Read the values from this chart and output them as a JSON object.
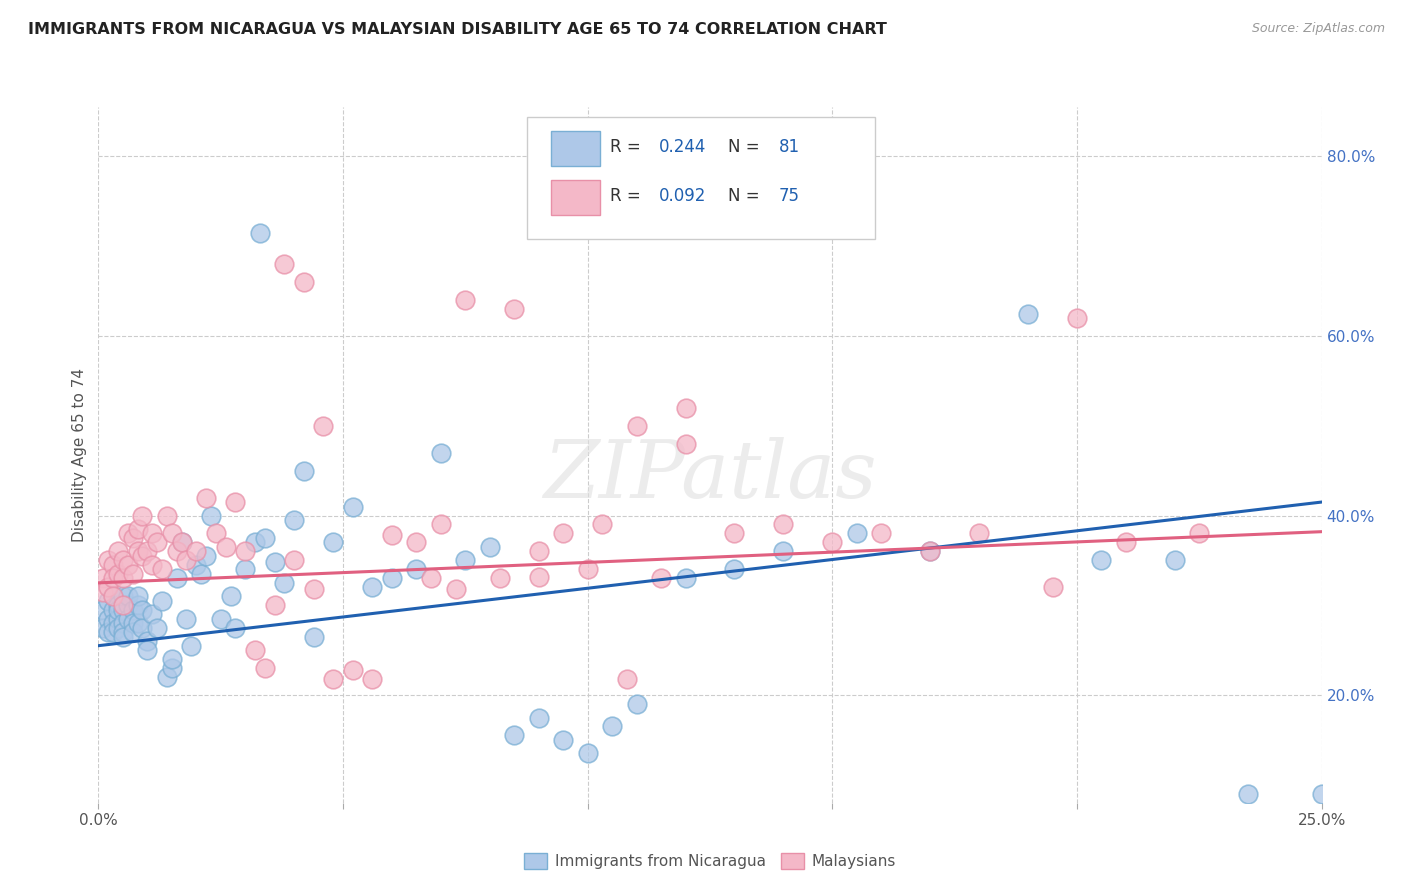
{
  "title": "IMMIGRANTS FROM NICARAGUA VS MALAYSIAN DISABILITY AGE 65 TO 74 CORRELATION CHART",
  "source": "Source: ZipAtlas.com",
  "ylabel": "Disability Age 65 to 74",
  "y_ticks": [
    0.2,
    0.4,
    0.6,
    0.8
  ],
  "y_tick_labels": [
    "20.0%",
    "40.0%",
    "60.0%",
    "80.0%"
  ],
  "xlim": [
    0.0,
    0.25
  ],
  "ylim": [
    0.08,
    0.855
  ],
  "legend_r1": "0.244",
  "legend_n1": "81",
  "legend_r2": "0.092",
  "legend_n2": "75",
  "color_blue": "#aec8e8",
  "color_pink": "#f4b8c8",
  "edge_blue": "#7aafd4",
  "edge_pink": "#e890a8",
  "line_blue": "#2060b0",
  "line_pink": "#e06080",
  "trendline1_x": [
    0.0,
    0.25
  ],
  "trendline1_y": [
    0.255,
    0.415
  ],
  "trendline2_x": [
    0.0,
    0.25
  ],
  "trendline2_y": [
    0.325,
    0.382
  ],
  "scatter_blue_x": [
    0.001,
    0.001,
    0.002,
    0.002,
    0.002,
    0.003,
    0.003,
    0.003,
    0.003,
    0.004,
    0.004,
    0.004,
    0.004,
    0.005,
    0.005,
    0.005,
    0.005,
    0.005,
    0.006,
    0.006,
    0.006,
    0.007,
    0.007,
    0.007,
    0.008,
    0.008,
    0.008,
    0.009,
    0.009,
    0.01,
    0.01,
    0.011,
    0.012,
    0.013,
    0.014,
    0.015,
    0.015,
    0.016,
    0.017,
    0.018,
    0.019,
    0.02,
    0.021,
    0.022,
    0.023,
    0.025,
    0.027,
    0.028,
    0.03,
    0.032,
    0.034,
    0.036,
    0.038,
    0.04,
    0.042,
    0.044,
    0.048,
    0.052,
    0.056,
    0.06,
    0.065,
    0.07,
    0.075,
    0.08,
    0.085,
    0.09,
    0.095,
    0.1,
    0.105,
    0.11,
    0.12,
    0.13,
    0.14,
    0.155,
    0.17,
    0.19,
    0.205,
    0.22,
    0.235,
    0.25,
    0.033
  ],
  "scatter_blue_y": [
    0.295,
    0.275,
    0.305,
    0.285,
    0.27,
    0.31,
    0.295,
    0.28,
    0.27,
    0.3,
    0.285,
    0.295,
    0.275,
    0.295,
    0.31,
    0.28,
    0.27,
    0.265,
    0.3,
    0.31,
    0.285,
    0.295,
    0.28,
    0.27,
    0.3,
    0.31,
    0.28,
    0.295,
    0.275,
    0.26,
    0.25,
    0.29,
    0.275,
    0.305,
    0.22,
    0.23,
    0.24,
    0.33,
    0.37,
    0.285,
    0.255,
    0.345,
    0.335,
    0.355,
    0.4,
    0.285,
    0.31,
    0.275,
    0.34,
    0.37,
    0.375,
    0.348,
    0.325,
    0.395,
    0.45,
    0.265,
    0.37,
    0.41,
    0.32,
    0.33,
    0.34,
    0.47,
    0.35,
    0.365,
    0.155,
    0.175,
    0.15,
    0.135,
    0.165,
    0.19,
    0.33,
    0.34,
    0.36,
    0.38,
    0.36,
    0.625,
    0.35,
    0.35,
    0.09,
    0.09,
    0.715
  ],
  "scatter_pink_x": [
    0.001,
    0.001,
    0.002,
    0.002,
    0.003,
    0.003,
    0.003,
    0.004,
    0.004,
    0.005,
    0.005,
    0.005,
    0.006,
    0.006,
    0.007,
    0.007,
    0.008,
    0.008,
    0.009,
    0.009,
    0.01,
    0.011,
    0.011,
    0.012,
    0.013,
    0.014,
    0.015,
    0.016,
    0.017,
    0.018,
    0.02,
    0.022,
    0.024,
    0.026,
    0.028,
    0.03,
    0.032,
    0.034,
    0.036,
    0.04,
    0.044,
    0.048,
    0.052,
    0.056,
    0.06,
    0.065,
    0.07,
    0.075,
    0.082,
    0.09,
    0.1,
    0.11,
    0.12,
    0.13,
    0.14,
    0.15,
    0.16,
    0.17,
    0.18,
    0.195,
    0.21,
    0.225,
    0.038,
    0.042,
    0.046,
    0.068,
    0.073,
    0.085,
    0.09,
    0.095,
    0.103,
    0.108,
    0.115,
    0.12,
    0.2
  ],
  "scatter_pink_y": [
    0.33,
    0.315,
    0.35,
    0.32,
    0.345,
    0.33,
    0.31,
    0.36,
    0.335,
    0.35,
    0.3,
    0.33,
    0.38,
    0.345,
    0.375,
    0.335,
    0.36,
    0.385,
    0.4,
    0.355,
    0.36,
    0.38,
    0.345,
    0.37,
    0.34,
    0.4,
    0.38,
    0.36,
    0.37,
    0.35,
    0.36,
    0.42,
    0.38,
    0.365,
    0.415,
    0.36,
    0.25,
    0.23,
    0.3,
    0.35,
    0.318,
    0.218,
    0.228,
    0.218,
    0.378,
    0.37,
    0.39,
    0.64,
    0.33,
    0.332,
    0.34,
    0.5,
    0.48,
    0.38,
    0.39,
    0.37,
    0.38,
    0.36,
    0.38,
    0.32,
    0.37,
    0.38,
    0.68,
    0.66,
    0.5,
    0.33,
    0.318,
    0.63,
    0.36,
    0.38,
    0.39,
    0.218,
    0.33,
    0.52,
    0.62
  ]
}
